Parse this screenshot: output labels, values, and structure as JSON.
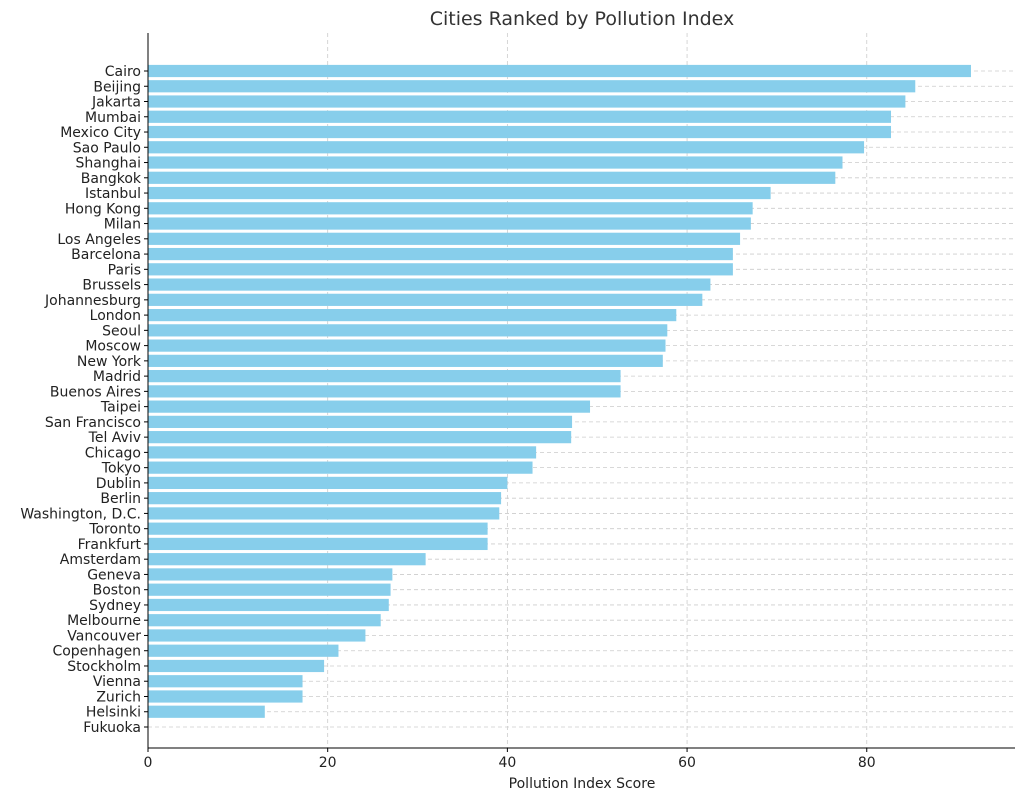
{
  "chart_data": {
    "type": "bar",
    "orientation": "horizontal",
    "title": "Cities Ranked by Pollution Index",
    "xlabel": "Pollution Index Score",
    "ylabel": "",
    "xlim": [
      0,
      96.5
    ],
    "xticks": [
      0,
      20,
      40,
      60,
      80
    ],
    "grid": true,
    "bar_color": "#87CEEB",
    "categories": [
      "Cairo",
      "Beijing",
      "Jakarta",
      "Mumbai",
      "Mexico City",
      "Sao Paulo",
      "Shanghai",
      "Bangkok",
      "Istanbul",
      "Hong Kong",
      "Milan",
      "Los Angeles",
      "Barcelona",
      "Paris",
      "Brussels",
      "Johannesburg",
      "London",
      "Seoul",
      "Moscow",
      "New York",
      "Madrid",
      "Buenos Aires",
      "Taipei",
      "San Francisco",
      "Tel Aviv",
      "Chicago",
      "Tokyo",
      "Dublin",
      "Berlin",
      "Washington, D.C.",
      "Toronto",
      "Frankfurt",
      "Amsterdam",
      "Geneva",
      "Boston",
      "Sydney",
      "Melbourne",
      "Vancouver",
      "Copenhagen",
      "Stockholm",
      "Vienna",
      "Zurich",
      "Helsinki",
      "Fukuoka"
    ],
    "values": [
      91.6,
      85.4,
      84.3,
      82.7,
      82.7,
      79.7,
      77.3,
      76.5,
      69.3,
      67.3,
      67.1,
      65.9,
      65.1,
      65.1,
      62.6,
      61.7,
      58.8,
      57.8,
      57.6,
      57.3,
      52.6,
      52.6,
      49.2,
      47.2,
      47.1,
      43.2,
      42.8,
      40.0,
      39.3,
      39.1,
      37.8,
      37.8,
      30.9,
      27.2,
      27.0,
      26.8,
      25.9,
      24.2,
      21.2,
      19.6,
      17.2,
      17.2,
      13.0,
      0.0
    ]
  }
}
